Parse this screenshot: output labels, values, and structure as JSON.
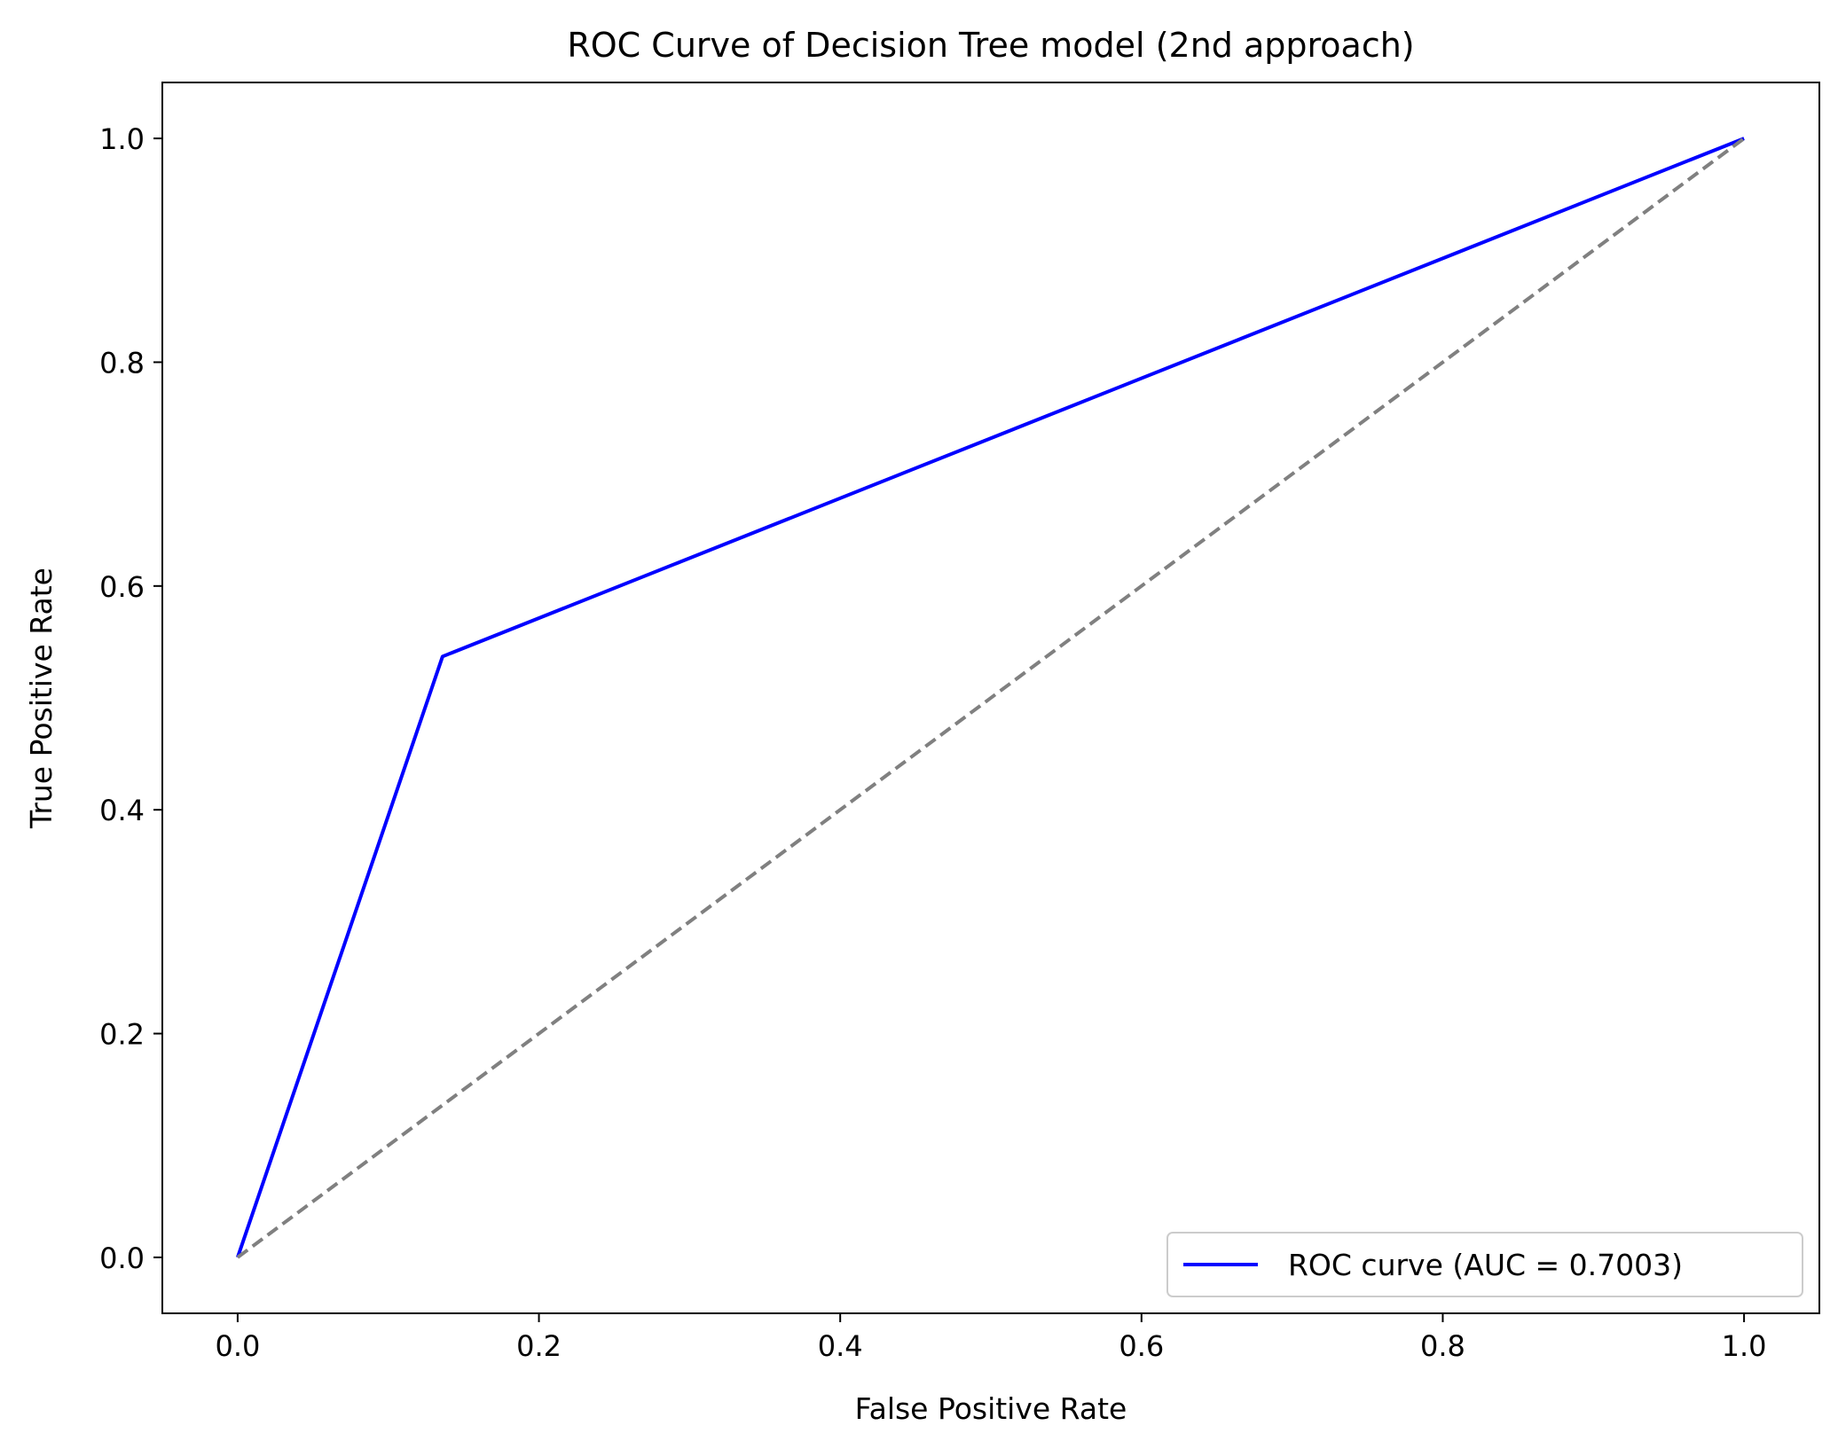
{
  "chart_data": {
    "type": "line",
    "title": "ROC Curve of Decision Tree model (2nd approach)",
    "xlabel": "False Positive Rate",
    "ylabel": "True Positive Rate",
    "xlim": [
      -0.05,
      1.05
    ],
    "ylim": [
      -0.05,
      1.05
    ],
    "xticks": [
      "0.0",
      "0.2",
      "0.4",
      "0.6",
      "0.8",
      "1.0"
    ],
    "yticks": [
      "0.0",
      "0.2",
      "0.4",
      "0.6",
      "0.8",
      "1.0"
    ],
    "grid": false,
    "legend_position": "lower-right",
    "series": [
      {
        "name": "ROC curve (AUC = 0.7003)",
        "color": "#0000ff",
        "style": "solid",
        "x": [
          0.0,
          0.136,
          1.0
        ],
        "y": [
          0.0,
          0.537,
          1.0
        ]
      },
      {
        "color": "#808080",
        "style": "dashed",
        "x": [
          0.0,
          1.0
        ],
        "y": [
          0.0,
          1.0
        ]
      }
    ]
  }
}
